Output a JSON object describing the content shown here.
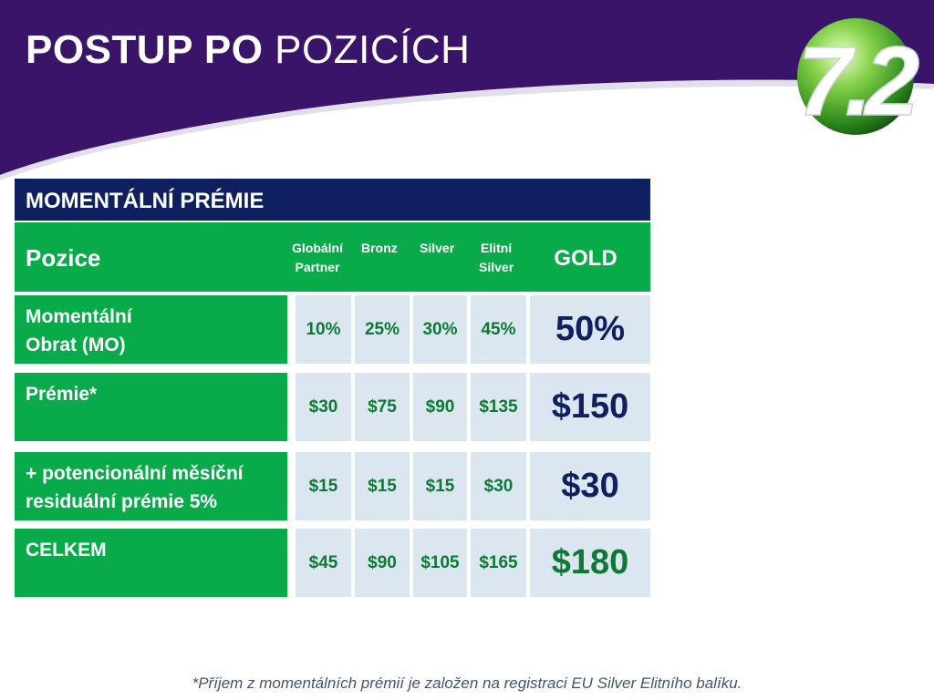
{
  "slide": {
    "title_bold": "POSTUP PO",
    "title_regular": "POZICÍCH",
    "logo_text": "7.2"
  },
  "colors": {
    "banner": "#3a1468",
    "header": "#0e2060",
    "green": "#08aa4a",
    "cell": "#dce6f1",
    "gold_navy": "#0e2060",
    "gold_green": "#0c7a34"
  },
  "table": {
    "header": "MOMENTÁLNÍ PRÉMIE",
    "position_label": "Pozice",
    "columns": [
      {
        "line1": "Globální",
        "line2": "Partner"
      },
      {
        "line1": "Bronz",
        "line2": ""
      },
      {
        "line1": "Silver",
        "line2": ""
      },
      {
        "line1": "Elitní",
        "line2": "Silver"
      }
    ],
    "gold_label": "GOLD",
    "rows": [
      {
        "label_line1": "Momentální",
        "label_line2": "Obrat (MO)",
        "values": [
          "10%",
          "25%",
          "30%",
          "45%"
        ],
        "gold": "50%"
      },
      {
        "label_line1": "Prémie*",
        "label_line2": "",
        "values": [
          "$30",
          "$75",
          "$90",
          "$135"
        ],
        "gold": "$150"
      },
      {
        "label_line1": "+ potencionální měsíční",
        "label_line2": "residuální prémie 5%",
        "values": [
          "$15",
          "$15",
          "$15",
          "$30"
        ],
        "gold": "$30"
      },
      {
        "label_line1": "CELKEM",
        "label_line2": "",
        "values": [
          "$45",
          "$90",
          "$105",
          "$165"
        ],
        "gold": "$180"
      }
    ]
  },
  "footnote": "*Příjem z momentálních prémií  je založen na registraci EU Silver Elitního balíku."
}
